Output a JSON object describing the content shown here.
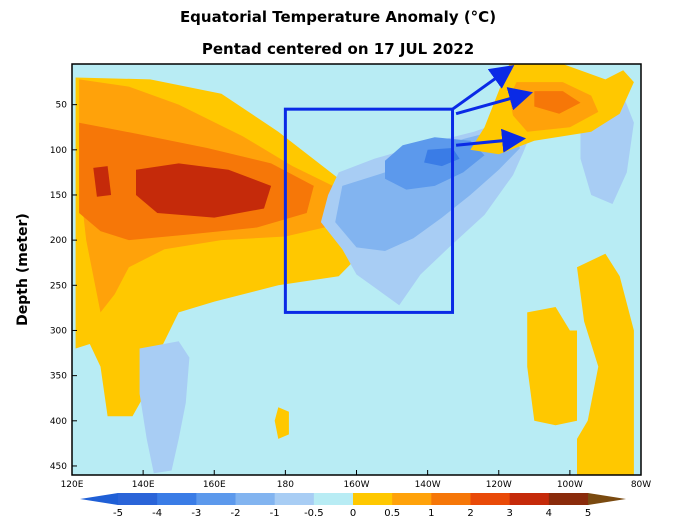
{
  "chart_data": {
    "type": "heatmap",
    "title": "Equatorial Temperature Anomaly (°C)",
    "subtitle": "Pentad centered on 17 JUL 2022",
    "ylabel": "Depth (meter)",
    "xlabel": "",
    "x_ticks": [
      "120E",
      "140E",
      "160E",
      "180",
      "160W",
      "140W",
      "120W",
      "100W",
      "80W"
    ],
    "x_range": [
      120,
      280
    ],
    "y_ticks": [
      50,
      100,
      150,
      200,
      250,
      300,
      350,
      400,
      450
    ],
    "y_range": [
      5,
      460
    ],
    "y_reversed": true,
    "colorbar": {
      "levels": [
        "-5",
        "-4",
        "-3",
        "-2",
        "-1",
        "-0.5",
        "0",
        "0.5",
        "1",
        "2",
        "3",
        "4",
        "5"
      ],
      "colors": [
        "#2a64d8",
        "#3a7ce6",
        "#5c99ec",
        "#82b4f0",
        "#a8cdf4",
        "#b8ecf4",
        "#ffc800",
        "#ffa20a",
        "#f67708",
        "#e94a08",
        "#c52a0a",
        "#8a2b0b"
      ],
      "extend": "both"
    },
    "regions": [
      {
        "level": "0.5",
        "color": "#ffc800",
        "points": [
          [
            121,
            20
          ],
          [
            142,
            22
          ],
          [
            162,
            38
          ],
          [
            178,
            80
          ],
          [
            196,
            135
          ],
          [
            205,
            200
          ],
          [
            195,
            240
          ],
          [
            178,
            250
          ],
          [
            160,
            268
          ],
          [
            150,
            280
          ],
          [
            145,
            320
          ],
          [
            142,
            360
          ],
          [
            137,
            395
          ],
          [
            130,
            395
          ],
          [
            128,
            340
          ],
          [
            125,
            315
          ],
          [
            121,
            320
          ]
        ]
      },
      {
        "level": "0.5",
        "color": "#ffc800",
        "points": [
          [
            177,
            400
          ],
          [
            178,
            385
          ],
          [
            181,
            390
          ],
          [
            181,
            415
          ],
          [
            178,
            420
          ]
        ]
      },
      {
        "level": "1",
        "color": "#ffa20a",
        "points": [
          [
            122,
            22
          ],
          [
            136,
            30
          ],
          [
            150,
            50
          ],
          [
            168,
            85
          ],
          [
            182,
            118
          ],
          [
            196,
            145
          ],
          [
            192,
            185
          ],
          [
            180,
            196
          ],
          [
            162,
            200
          ],
          [
            146,
            210
          ],
          [
            136,
            230
          ],
          [
            132,
            260
          ],
          [
            128,
            280
          ],
          [
            124,
            200
          ],
          [
            122,
            130
          ]
        ]
      },
      {
        "level": "2",
        "color": "#f67708",
        "points": [
          [
            122,
            70
          ],
          [
            138,
            82
          ],
          [
            158,
            98
          ],
          [
            176,
            115
          ],
          [
            188,
            140
          ],
          [
            186,
            170
          ],
          [
            172,
            186
          ],
          [
            152,
            194
          ],
          [
            136,
            200
          ],
          [
            128,
            190
          ],
          [
            122,
            170
          ]
        ]
      },
      {
        "level": "3",
        "color": "#c52a0a",
        "points": [
          [
            138,
            122
          ],
          [
            150,
            115
          ],
          [
            164,
            122
          ],
          [
            176,
            140
          ],
          [
            174,
            165
          ],
          [
            160,
            175
          ],
          [
            144,
            170
          ],
          [
            138,
            150
          ]
        ]
      },
      {
        "level": "3",
        "color": "#c52a0a",
        "points": [
          [
            126,
            120
          ],
          [
            130,
            118
          ],
          [
            131,
            150
          ],
          [
            127,
            152
          ]
        ]
      },
      {
        "level": "-0.5",
        "color": "#a8cdf4",
        "points": [
          [
            195,
            125
          ],
          [
            205,
            110
          ],
          [
            218,
            95
          ],
          [
            233,
            80
          ],
          [
            244,
            65
          ],
          [
            250,
            72
          ],
          [
            247,
            102
          ],
          [
            244,
            128
          ],
          [
            236,
            172
          ],
          [
            226,
            208
          ],
          [
            218,
            238
          ],
          [
            212,
            272
          ],
          [
            206,
            255
          ],
          [
            200,
            238
          ],
          [
            196,
            210
          ],
          [
            190,
            180
          ],
          [
            192,
            150
          ]
        ]
      },
      {
        "level": "-1",
        "color": "#82b4f0",
        "points": [
          [
            196,
            140
          ],
          [
            208,
            125
          ],
          [
            222,
            102
          ],
          [
            230,
            88
          ],
          [
            242,
            76
          ],
          [
            246,
            98
          ],
          [
            240,
            122
          ],
          [
            232,
            150
          ],
          [
            224,
            175
          ],
          [
            216,
            198
          ],
          [
            208,
            212
          ],
          [
            200,
            208
          ],
          [
            194,
            180
          ]
        ]
      },
      {
        "level": "-2",
        "color": "#5c99ec",
        "points": [
          [
            213,
            95
          ],
          [
            222,
            86
          ],
          [
            232,
            90
          ],
          [
            236,
            106
          ],
          [
            230,
            125
          ],
          [
            222,
            140
          ],
          [
            214,
            144
          ],
          [
            208,
            132
          ],
          [
            208,
            112
          ]
        ]
      },
      {
        "level": "-3",
        "color": "#3a7ce6",
        "points": [
          [
            220,
            100
          ],
          [
            227,
            98
          ],
          [
            229,
            110
          ],
          [
            224,
            118
          ],
          [
            219,
            114
          ]
        ]
      },
      {
        "level": "-0.5",
        "color": "#a8cdf4",
        "points": [
          [
            139,
            320
          ],
          [
            150,
            312
          ],
          [
            153,
            330
          ],
          [
            152,
            380
          ],
          [
            150,
            420
          ],
          [
            148,
            455
          ],
          [
            143,
            458
          ],
          [
            141,
            420
          ],
          [
            139,
            370
          ]
        ]
      },
      {
        "level": "-0.5",
        "color": "#a8cdf4",
        "points": [
          [
            263,
            60
          ],
          [
            275,
            40
          ],
          [
            278,
            70
          ],
          [
            276,
            125
          ],
          [
            272,
            160
          ],
          [
            266,
            150
          ],
          [
            263,
            110
          ]
        ]
      },
      {
        "level": "0.5",
        "color": "#ffc800",
        "points": [
          [
            243,
            5
          ],
          [
            258,
            5
          ],
          [
            270,
            22
          ],
          [
            275,
            12
          ],
          [
            278,
            25
          ],
          [
            274,
            60
          ],
          [
            266,
            80
          ],
          [
            250,
            90
          ],
          [
            240,
            105
          ],
          [
            232,
            100
          ],
          [
            236,
            75
          ]
        ]
      },
      {
        "level": "1",
        "color": "#ffa20a",
        "points": [
          [
            245,
            25
          ],
          [
            258,
            25
          ],
          [
            266,
            40
          ],
          [
            268,
            58
          ],
          [
            260,
            75
          ],
          [
            248,
            80
          ],
          [
            244,
            62
          ],
          [
            243,
            42
          ]
        ]
      },
      {
        "level": "2",
        "color": "#f67708",
        "points": [
          [
            250,
            35
          ],
          [
            258,
            35
          ],
          [
            263,
            48
          ],
          [
            257,
            60
          ],
          [
            250,
            52
          ]
        ]
      },
      {
        "level": "0.5",
        "color": "#ffc800",
        "points": [
          [
            248,
            280
          ],
          [
            256,
            274
          ],
          [
            260,
            300
          ],
          [
            262,
            300
          ],
          [
            262,
            400
          ],
          [
            256,
            405
          ],
          [
            250,
            400
          ],
          [
            248,
            340
          ]
        ]
      },
      {
        "level": "0.5",
        "color": "#ffc800",
        "points": [
          [
            262,
            230
          ],
          [
            270,
            215
          ],
          [
            274,
            240
          ],
          [
            276,
            270
          ],
          [
            278,
            300
          ],
          [
            278,
            460
          ],
          [
            262,
            460
          ],
          [
            262,
            420
          ],
          [
            265,
            400
          ],
          [
            268,
            340
          ],
          [
            264,
            290
          ]
        ]
      }
    ],
    "annotation_box": {
      "x": [
        180,
        227
      ],
      "y": [
        55,
        280
      ]
    },
    "annotation_arrows": [
      {
        "from": [
          227,
          55
        ],
        "to": [
          243,
          10
        ]
      },
      {
        "from": [
          228,
          60
        ],
        "to": [
          248,
          38
        ]
      },
      {
        "from": [
          228,
          95
        ],
        "to": [
          246,
          88
        ]
      }
    ],
    "colors": {
      "background": "#b8ecf4",
      "annotation": "#0a2ae6"
    }
  }
}
